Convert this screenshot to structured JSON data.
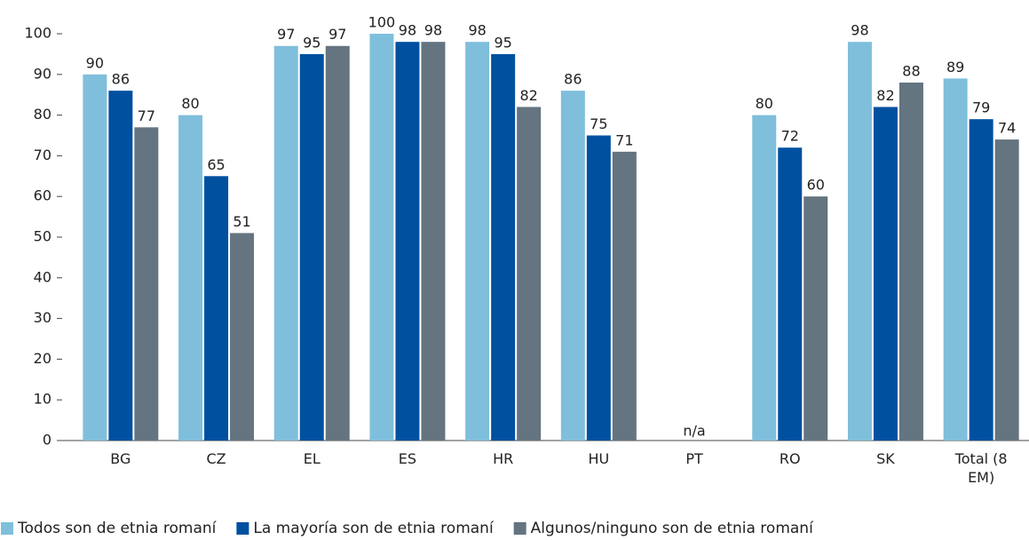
{
  "chart_data": {
    "type": "bar",
    "categories": [
      "BG",
      "CZ",
      "EL",
      "ES",
      "HR",
      "HU",
      "PT",
      "RO",
      "SK",
      "Total (8 EM)"
    ],
    "series": [
      {
        "name": "Todos son de etnia romaní",
        "color": "#7fbfdc",
        "values": [
          90,
          80,
          97,
          100,
          98,
          86,
          null,
          80,
          98,
          89
        ]
      },
      {
        "name": "La mayoría son de etnia romaní",
        "color": "#0050a0",
        "values": [
          86,
          65,
          95,
          98,
          95,
          75,
          null,
          72,
          82,
          79
        ]
      },
      {
        "name": "Algunos/ninguno son de etnia romaní",
        "color": "#647480",
        "values": [
          77,
          51,
          97,
          98,
          82,
          71,
          null,
          60,
          88,
          74
        ]
      }
    ],
    "annotations": [
      {
        "text": "n/a",
        "category": 6
      }
    ],
    "ylim": [
      0,
      100
    ],
    "yticks": [
      0,
      10,
      20,
      30,
      40,
      50,
      60,
      70,
      80,
      90,
      100
    ],
    "grid": false,
    "legend": "bottom"
  }
}
